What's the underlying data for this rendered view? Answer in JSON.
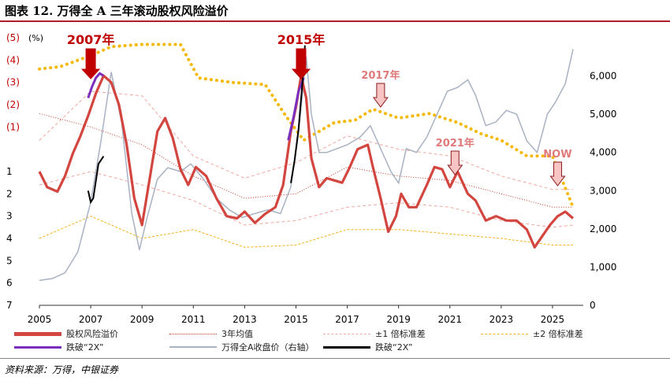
{
  "title": "图表 12. 万得全 A 三年滚动股权风险溢价",
  "source": "资料来源：万得，中银证券",
  "colors": {
    "erp": "#d3453f",
    "mean": "#c0392b",
    "sd1": "#f0a7a0",
    "sd2": "#f2b21a",
    "index": "#a9b2c3",
    "break_erp": "#7b2fbe",
    "break_index": "#000000",
    "arrow_dark": "#c00000",
    "arrow_light": "#f8c4c4",
    "arrow_outline": "#8b1a1a",
    "pink_text": "#e07a7a",
    "dot": "#f5b800"
  },
  "chart_data": {
    "type": "line",
    "x_range": [
      2005,
      2026.2
    ],
    "x_ticks": [
      "2005",
      "2007",
      "2009",
      "2011",
      "2013",
      "2015",
      "2017",
      "2019",
      "2021",
      "2023",
      "2025"
    ],
    "left_axis": {
      "unit_label": "(%)",
      "range": [
        -5,
        7
      ],
      "ticks": [
        "(5)",
        "(4)",
        "(3)",
        "(2)",
        "(1)",
        "1",
        "2",
        "3",
        "4",
        "5",
        "6",
        "7"
      ]
    },
    "right_axis": {
      "range": [
        0,
        7000
      ],
      "ticks": [
        "0",
        "1,000",
        "2,000",
        "3,000",
        "4,000",
        "5,000",
        "6,000"
      ]
    },
    "series": [
      {
        "name": "股权风险溢价",
        "x": [
          2005.0,
          2005.3,
          2005.7,
          2006.0,
          2006.3,
          2006.6,
          2006.9,
          2007.2,
          2007.5,
          2007.8,
          2008.1,
          2008.4,
          2008.7,
          2009.0,
          2009.3,
          2009.6,
          2009.9,
          2010.2,
          2010.5,
          2010.8,
          2011.1,
          2011.5,
          2011.9,
          2012.3,
          2012.7,
          2013.0,
          2013.4,
          2013.8,
          2014.2,
          2014.5,
          2014.8,
          2015.0,
          2015.2,
          2015.4,
          2015.6,
          2015.9,
          2016.2,
          2016.5,
          2016.8,
          2017.1,
          2017.4,
          2017.8,
          2018.0,
          2018.3,
          2018.6,
          2018.9,
          2019.1,
          2019.4,
          2019.7,
          2020.1,
          2020.4,
          2020.7,
          2021.0,
          2021.3,
          2021.7,
          2022.0,
          2022.4,
          2022.8,
          2023.2,
          2023.6,
          2024.0,
          2024.3,
          2024.6,
          2024.9,
          2025.2,
          2025.5,
          2025.8
        ],
        "values": [
          1.0,
          1.7,
          1.9,
          1.2,
          0.2,
          -0.6,
          -1.5,
          -2.5,
          -3.3,
          -3.0,
          -2.0,
          -0.2,
          2.2,
          3.4,
          1.3,
          -0.8,
          -1.4,
          -0.5,
          0.9,
          1.6,
          0.8,
          1.2,
          2.2,
          3.0,
          3.1,
          2.8,
          3.3,
          2.9,
          2.6,
          1.6,
          -0.8,
          -1.9,
          -3.3,
          -2.3,
          0.4,
          1.7,
          1.3,
          1.4,
          1.5,
          0.8,
          0.0,
          -0.2,
          0.8,
          2.2,
          3.7,
          3.0,
          2.0,
          2.6,
          2.6,
          1.6,
          0.8,
          0.9,
          1.7,
          1.0,
          2.0,
          2.3,
          3.2,
          3.0,
          3.2,
          3.2,
          3.6,
          4.4,
          3.9,
          3.4,
          3.0,
          2.8,
          3.1
        ]
      },
      {
        "name": "3年均值",
        "x": [
          2005.0,
          2007.0,
          2009.0,
          2011.0,
          2013.0,
          2015.0,
          2017.0,
          2019.0,
          2021.0,
          2023.0,
          2025.0,
          2025.8
        ],
        "values": [
          -1.6,
          -1.0,
          -0.2,
          1.2,
          2.2,
          2.0,
          0.8,
          1.2,
          1.4,
          2.0,
          2.6,
          2.6
        ]
      },
      {
        "name": "±1 倍标准差",
        "x": [
          2005.0,
          2007.0,
          2009.0,
          2011.0,
          2013.0,
          2015.0,
          2017.0,
          2019.0,
          2021.0,
          2023.0,
          2025.0,
          2025.8
        ],
        "values": [
          1.6,
          1.0,
          1.6,
          2.3,
          3.4,
          3.2,
          2.6,
          2.4,
          2.6,
          3.2,
          3.5,
          3.4
        ]
      },
      {
        "name": "±1 倍标准差",
        "x": [
          2005.0,
          2007.0,
          2009.0,
          2011.0,
          2013.0,
          2015.0,
          2017.0,
          2019.0,
          2021.0,
          2023.0,
          2025.0,
          2025.8
        ],
        "values": [
          -0.4,
          -2.6,
          -2.4,
          0.3,
          1.3,
          0.6,
          -0.6,
          0.0,
          0.3,
          1.2,
          1.8,
          1.8
        ]
      },
      {
        "name": "±2 倍标准差",
        "x": [
          2005.0,
          2007.0,
          2009.0,
          2011.0,
          2013.0,
          2015.0,
          2017.0,
          2019.0,
          2021.0,
          2023.0,
          2025.0,
          2025.8
        ],
        "values": [
          4.0,
          3.0,
          4.0,
          3.6,
          4.4,
          4.3,
          3.6,
          3.6,
          3.8,
          4.0,
          4.3,
          4.3
        ]
      },
      {
        "name": "±2 倍标准差",
        "x": [
          2005.0,
          2005.8,
          2007.0,
          2007.8,
          2009.0,
          2010.5,
          2011.2,
          2012.5,
          2013.8,
          2014.6,
          2015.3,
          2016.5,
          2017.3,
          2018.0,
          2019.0,
          2020.2,
          2021.3,
          2022.2,
          2023.0,
          2024.0,
          2025.0,
          2025.8
        ],
        "values": [
          -3.6,
          -3.7,
          -4.2,
          -4.6,
          -4.7,
          -4.7,
          -3.2,
          -3.0,
          -2.9,
          -1.5,
          -0.4,
          -1.2,
          -1.3,
          -1.8,
          -1.4,
          -1.6,
          -1.2,
          -0.7,
          -0.4,
          0.3,
          0.3,
          2.6
        ]
      },
      {
        "name": "万得全A收盘价（右轴）",
        "axis": "right",
        "x": [
          2005.0,
          2005.5,
          2006.0,
          2006.5,
          2007.0,
          2007.4,
          2007.8,
          2008.2,
          2008.6,
          2008.9,
          2009.2,
          2009.6,
          2010.0,
          2010.5,
          2010.9,
          2011.4,
          2011.9,
          2012.4,
          2012.9,
          2013.4,
          2013.9,
          2014.4,
          2014.8,
          2015.1,
          2015.4,
          2015.6,
          2015.9,
          2016.2,
          2016.6,
          2017.0,
          2017.5,
          2017.9,
          2018.3,
          2018.7,
          2019.0,
          2019.3,
          2019.7,
          2020.1,
          2020.5,
          2020.9,
          2021.3,
          2021.7,
          2022.0,
          2022.4,
          2022.8,
          2023.2,
          2023.6,
          2024.0,
          2024.4,
          2024.8,
          2025.1,
          2025.5,
          2025.8
        ],
        "values": [
          650,
          700,
          850,
          1400,
          2700,
          4300,
          6100,
          4800,
          2400,
          1450,
          2300,
          3300,
          3600,
          3500,
          3700,
          3300,
          2800,
          2500,
          2300,
          2400,
          2500,
          2400,
          3100,
          4500,
          6500,
          5000,
          4000,
          4000,
          4100,
          4200,
          4400,
          4700,
          4100,
          3500,
          3200,
          4100,
          4000,
          4400,
          5000,
          5600,
          5700,
          5900,
          5500,
          4700,
          4800,
          5100,
          5000,
          4300,
          4000,
          5000,
          5300,
          5800,
          6700
        ]
      },
      {
        "name": "跌破“2X”",
        "x": [
          2006.9,
          2007.05,
          2007.2,
          2007.35,
          2007.5
        ],
        "values": [
          -2.3,
          -2.8,
          -3.2,
          -3.4,
          -3.3
        ]
      },
      {
        "name": "跌破“2X”",
        "axis": "right",
        "x": [
          2006.9,
          2007.0,
          2007.1,
          2007.3,
          2007.5
        ],
        "values": [
          3000,
          2700,
          2800,
          3700,
          3900
        ]
      }
    ],
    "annotations": [
      {
        "text": "2007年",
        "x": 2007.0,
        "style": "dark-red"
      },
      {
        "text": "2015年",
        "x": 2015.2,
        "style": "dark-red"
      },
      {
        "text": "2017年",
        "x": 2018.3,
        "style": "pink"
      },
      {
        "text": "2021年",
        "x": 2021.2,
        "style": "pink"
      },
      {
        "text": "NOW",
        "x": 2025.2,
        "style": "pink"
      }
    ]
  },
  "legend": [
    {
      "label": "股权风险溢价",
      "key": "erp"
    },
    {
      "label": "3年均值",
      "key": "mean"
    },
    {
      "label": "±1 倍标准差",
      "key": "sd1"
    },
    {
      "label": "±2 倍标准差",
      "key": "sd2"
    },
    {
      "label": "跌破“2X”",
      "key": "break_erp"
    },
    {
      "label": "万得全A收盘价（右轴）",
      "key": "index"
    },
    {
      "label": "跌破“2X”",
      "key": "break_index"
    }
  ]
}
